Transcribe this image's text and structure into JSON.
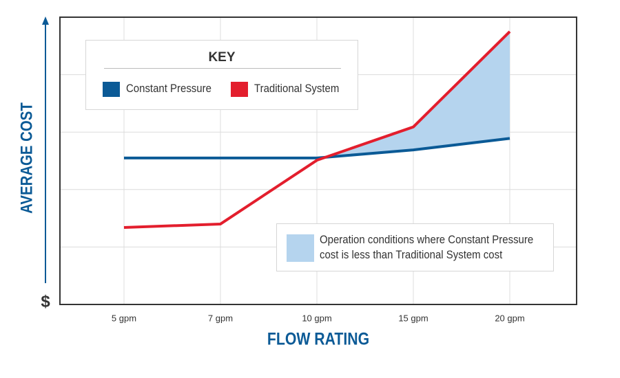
{
  "chart_data": {
    "type": "line",
    "y_label": "AVERAGE COST",
    "y_origin_label": "$",
    "x_label": "FLOW RATING",
    "legend_title": "KEY",
    "annotation": "Operation conditions where Constant Pressure cost is less than Traditional System cost",
    "shade_color": "#b5d4ee",
    "categories": [
      "5 gpm",
      "7 gpm",
      "10 gpm",
      "15 gpm",
      "20 gpm"
    ],
    "ylim": [
      0,
      5
    ],
    "series": [
      {
        "name": "Constant Pressure",
        "color": "#0b5a96",
        "values": [
          2.55,
          2.55,
          2.55,
          2.69,
          2.89
        ]
      },
      {
        "name": "Traditional System",
        "color": "#e31e2d",
        "values": [
          1.34,
          1.4,
          2.51,
          3.09,
          4.75
        ]
      }
    ]
  }
}
